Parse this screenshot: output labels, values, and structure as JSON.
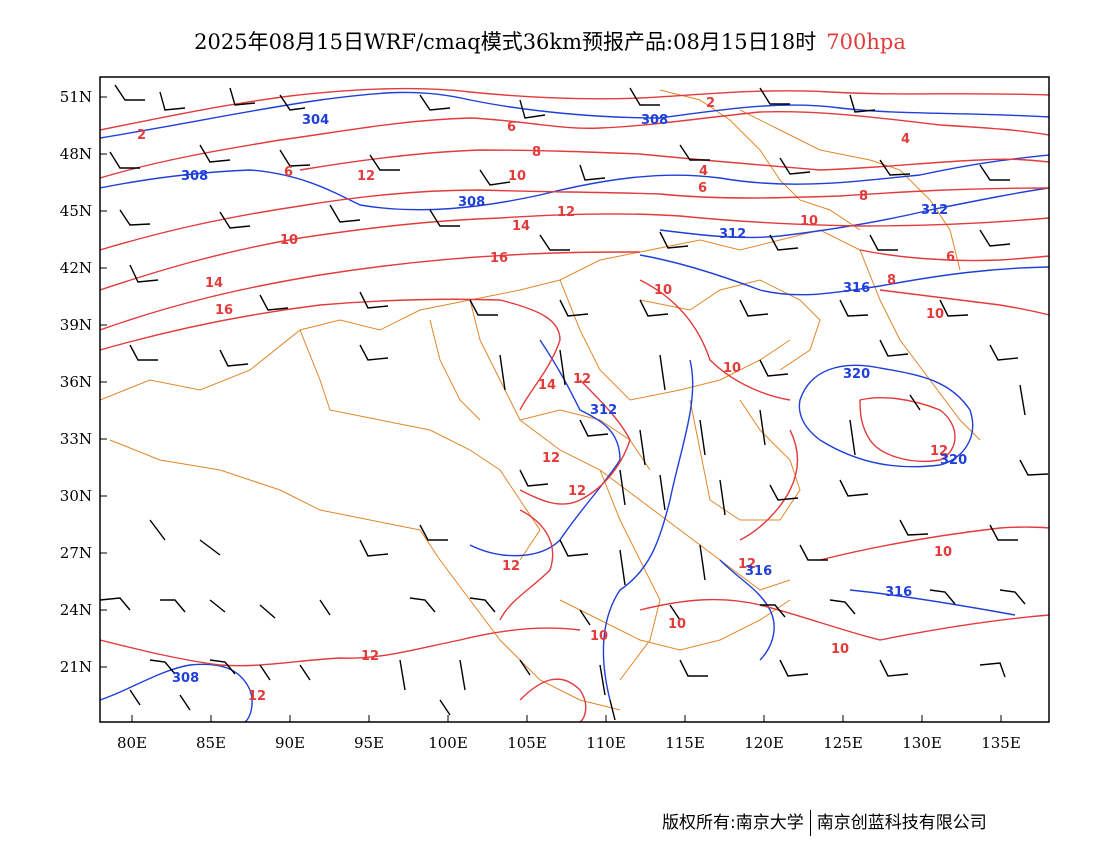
{
  "title": {
    "main": "2025年08月15日WRF/cmaq模式36km预报产品:08月15日18时",
    "level": "700hpa"
  },
  "axes": {
    "y_ticks": [
      "51N",
      "48N",
      "45N",
      "42N",
      "39N",
      "36N",
      "33N",
      "30N",
      "27N",
      "24N",
      "21N"
    ],
    "x_ticks": [
      "80E",
      "85E",
      "90E",
      "95E",
      "100E",
      "105E",
      "110E",
      "115E",
      "120E",
      "125E",
      "130E",
      "135E"
    ]
  },
  "contour_labels": {
    "temperature": [
      "2",
      "6",
      "8",
      "12",
      "10",
      "14",
      "16",
      "10",
      "4",
      "6",
      "8",
      "10",
      "6",
      "2",
      "4",
      "8",
      "10",
      "14",
      "12",
      "12",
      "12",
      "12",
      "10",
      "10",
      "10",
      "12",
      "12",
      "10",
      "12",
      "10",
      "16",
      "14",
      "6",
      "10",
      "12",
      "12"
    ],
    "height": [
      "304",
      "308",
      "308",
      "308",
      "312",
      "312",
      "316",
      "320",
      "320",
      "312",
      "316",
      "316",
      "308"
    ]
  },
  "colors": {
    "temperature": "#e23b3b",
    "height": "#1f3fd9",
    "border": "#e0872a",
    "wind": "#000000",
    "level_text": "#e23b3b"
  },
  "footer": {
    "left": "版权所有:南京大学",
    "right": "南京创蓝科技有限公司"
  }
}
